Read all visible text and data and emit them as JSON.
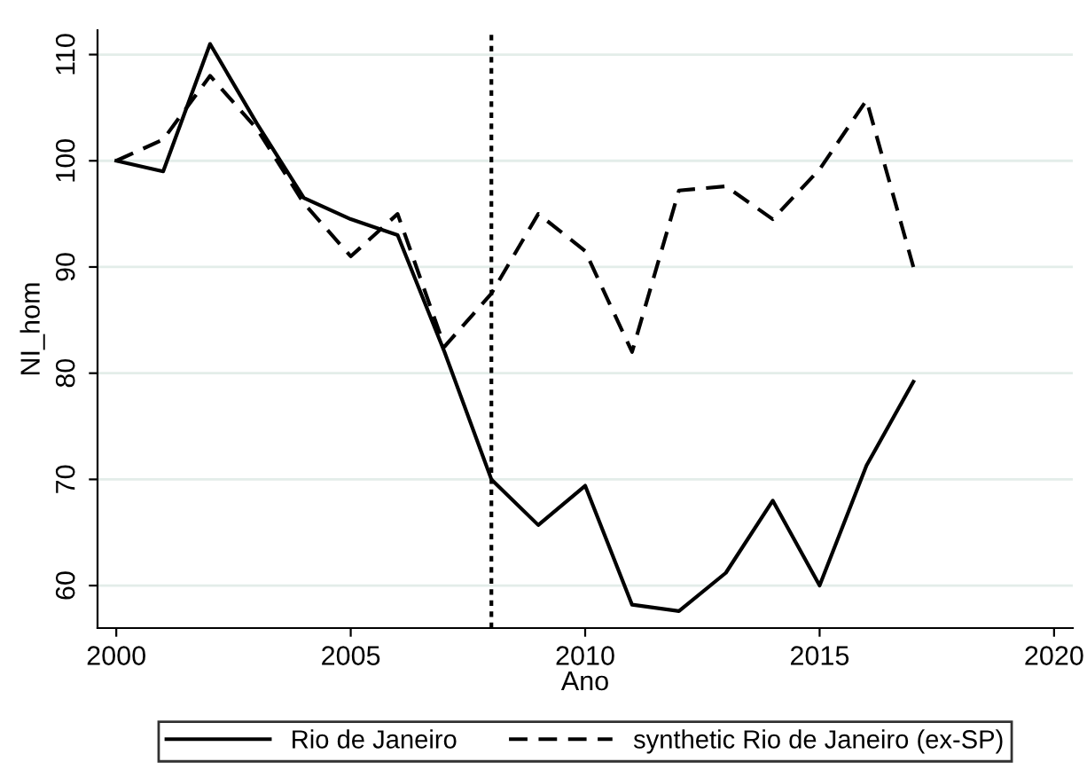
{
  "chart_data": {
    "type": "line",
    "xlabel": "Ano",
    "ylabel": "NI_hom",
    "x": [
      2000,
      2001,
      2002,
      2003,
      2004,
      2005,
      2006,
      2007,
      2008,
      2009,
      2010,
      2011,
      2012,
      2013,
      2014,
      2015,
      2016,
      2017
    ],
    "series": [
      {
        "name": "Rio de Janeiro",
        "color": "#000000",
        "line_style": "solid",
        "values": [
          100,
          99,
          111,
          103.5,
          96.5,
          94.5,
          93,
          82,
          70,
          65.7,
          69.4,
          58.2,
          57.6,
          61.2,
          68,
          60,
          71.3,
          79.2
        ]
      },
      {
        "name": "synthetic Rio de Janeiro (ex-SP)",
        "color": "#000000",
        "line_style": "dashed",
        "values": [
          100,
          102,
          108,
          103,
          96,
          91,
          95,
          82.5,
          87.5,
          95,
          91.5,
          82,
          97.2,
          97.6,
          94.5,
          99.2,
          105.7,
          90
        ]
      }
    ],
    "xlim": [
      1999.6,
      2020.4
    ],
    "ylim": [
      56,
      112.3
    ],
    "xticks": [
      2000,
      2005,
      2010,
      2015,
      2020
    ],
    "yticks": [
      60,
      70,
      80,
      90,
      100,
      110
    ],
    "ref_lines": [
      {
        "axis": "x",
        "value": 2008,
        "color": "#000000",
        "line_style": "dotted"
      }
    ],
    "grid": "y",
    "legend": "bottom",
    "marker": "none"
  }
}
